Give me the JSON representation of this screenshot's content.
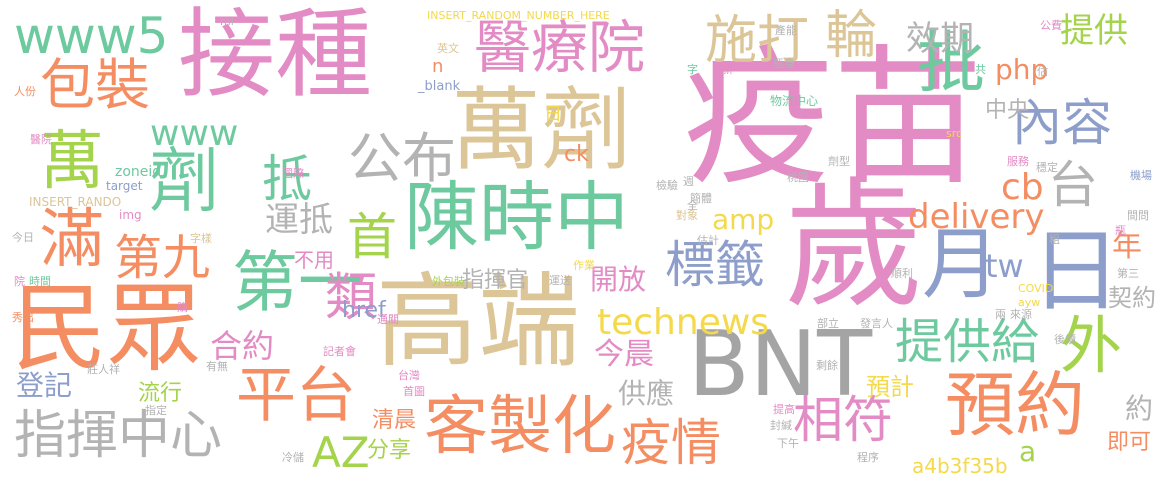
{
  "palette": {
    "pink": "#e38bc4",
    "tan": "#dcc597",
    "green": "#6dc99e",
    "orange": "#f58d62",
    "blue": "#8d9ecb",
    "lime": "#a4d34c",
    "yellow": "#f3d94b",
    "gray": "#b3b3b3",
    "darkgray": "#a4a4a4"
  },
  "words": [
    {
      "text": "疫苗",
      "color": "pink"
    },
    {
      "text": "接種",
      "color": "pink"
    },
    {
      "text": "歲",
      "color": "pink"
    },
    {
      "text": "高端",
      "color": "tan"
    },
    {
      "text": "萬劑",
      "color": "tan"
    },
    {
      "text": "民眾",
      "color": "orange"
    },
    {
      "text": "BNT",
      "color": "darkgray"
    },
    {
      "text": "陳時中",
      "color": "green"
    },
    {
      "text": "客製化",
      "color": "orange"
    },
    {
      "text": "日",
      "color": "blue"
    },
    {
      "text": "月",
      "color": "blue"
    },
    {
      "text": "醫療院",
      "color": "pink"
    },
    {
      "text": "包裝",
      "color": "orange"
    },
    {
      "text": "www5",
      "color": "green"
    },
    {
      "text": "平台",
      "color": "orange"
    },
    {
      "text": "指揮中心",
      "color": "gray"
    },
    {
      "text": "預約",
      "color": "orange"
    },
    {
      "text": "第一",
      "color": "green"
    },
    {
      "text": "批",
      "color": "green"
    },
    {
      "text": "劑",
      "color": "green"
    },
    {
      "text": "萬",
      "color": "lime"
    },
    {
      "text": "滿",
      "color": "orange"
    },
    {
      "text": "公布",
      "color": "gray"
    },
    {
      "text": "施打",
      "color": "tan"
    },
    {
      "text": "輪",
      "color": "tan"
    },
    {
      "text": "內容",
      "color": "blue"
    },
    {
      "text": "標籤",
      "color": "blue"
    },
    {
      "text": "疫情",
      "color": "orange"
    },
    {
      "text": "相符",
      "color": "pink"
    },
    {
      "text": "外",
      "color": "lime"
    },
    {
      "text": "提供給",
      "color": "green"
    },
    {
      "text": "technews",
      "color": "yellow"
    },
    {
      "text": "delivery",
      "color": "orange"
    },
    {
      "text": "台",
      "color": "gray"
    },
    {
      "text": "www",
      "color": "green"
    },
    {
      "text": "抵",
      "color": "green"
    },
    {
      "text": "首",
      "color": "lime"
    },
    {
      "text": "第九",
      "color": "orange"
    },
    {
      "text": "類",
      "color": "pink"
    },
    {
      "text": "AZ",
      "color": "lime"
    },
    {
      "text": "運抵",
      "color": "gray"
    },
    {
      "text": "效期",
      "color": "gray"
    },
    {
      "text": "提供",
      "color": "lime"
    },
    {
      "text": "php",
      "color": "orange"
    },
    {
      "text": "cb",
      "color": "orange"
    },
    {
      "text": "tw",
      "color": "blue"
    },
    {
      "text": "amp",
      "color": "yellow"
    },
    {
      "text": "今晨",
      "color": "pink"
    },
    {
      "text": "開放",
      "color": "pink"
    },
    {
      "text": "合約",
      "color": "pink"
    },
    {
      "text": "預計",
      "color": "yellow"
    },
    {
      "text": "年",
      "color": "orange"
    },
    {
      "text": "契約",
      "color": "gray"
    },
    {
      "text": "供應",
      "color": "gray"
    },
    {
      "text": "登記",
      "color": "blue"
    },
    {
      "text": "流行",
      "color": "lime"
    },
    {
      "text": "中央",
      "color": "gray"
    },
    {
      "text": "清晨",
      "color": "orange"
    },
    {
      "text": "分享",
      "color": "lime"
    },
    {
      "text": "href",
      "color": "blue"
    },
    {
      "text": "ck",
      "color": "orange"
    },
    {
      "text": "a4b3f35b",
      "color": "yellow"
    },
    {
      "text": "即可",
      "color": "orange"
    },
    {
      "text": "約",
      "color": "gray"
    },
    {
      "text": "指揮官",
      "color": "gray"
    },
    {
      "text": "不用",
      "color": "pink"
    },
    {
      "text": "a",
      "color": "lime"
    },
    {
      "text": "n",
      "color": "orange"
    },
    {
      "text": "日",
      "color": "yellow"
    },
    {
      "text": "INSERT_RANDOM_NUMBER_HERE",
      "color": "yellow"
    },
    {
      "text": "_blank",
      "color": "blue"
    },
    {
      "text": "zoneid",
      "color": "green"
    },
    {
      "text": "target",
      "color": "blue"
    },
    {
      "text": "INSERT_RANDO",
      "color": "tan"
    },
    {
      "text": "img",
      "color": "pink"
    },
    {
      "text": "物流中心",
      "color": "green"
    },
    {
      "text": "COVID",
      "color": "yellow"
    },
    {
      "text": "ayw",
      "color": "yellow"
    },
    {
      "text": "src",
      "color": "yellow"
    },
    {
      "text": "ml",
      "color": "gray"
    },
    {
      "text": "英文",
      "color": "tan"
    },
    {
      "text": "字",
      "color": "green"
    },
    {
      "text": "新",
      "color": "pink"
    },
    {
      "text": "共",
      "color": "green"
    },
    {
      "text": "產能",
      "color": "gray"
    },
    {
      "text": "瓶身",
      "color": "gray"
    },
    {
      "text": "公費",
      "color": "pink"
    },
    {
      "text": "估",
      "color": "gray"
    },
    {
      "text": "人份",
      "color": "orange"
    },
    {
      "text": "醫院",
      "color": "pink"
    },
    {
      "text": "服務",
      "color": "pink"
    },
    {
      "text": "劑型",
      "color": "gray"
    },
    {
      "text": "穩定",
      "color": "gray"
    },
    {
      "text": "機場",
      "color": "blue"
    },
    {
      "text": "桃園",
      "color": "gray"
    },
    {
      "text": "國際",
      "color": "pink"
    },
    {
      "text": "檢驗",
      "color": "gray"
    },
    {
      "text": "簡體",
      "color": "gray"
    },
    {
      "text": "週",
      "color": "gray"
    },
    {
      "text": "對象",
      "color": "tan"
    },
    {
      "text": "全",
      "color": "gray"
    },
    {
      "text": "粗",
      "color": "gray"
    },
    {
      "text": "間問",
      "color": "gray"
    },
    {
      "text": "今日",
      "color": "gray"
    },
    {
      "text": "字樣",
      "color": "tan"
    },
    {
      "text": "估計",
      "color": "gray"
    },
    {
      "text": "瓶",
      "color": "pink"
    },
    {
      "text": "時間",
      "color": "green"
    },
    {
      "text": "院",
      "color": "pink"
    },
    {
      "text": "外包裝",
      "color": "lime"
    },
    {
      "text": "作業",
      "color": "yellow"
    },
    {
      "text": "運送",
      "color": "gray"
    },
    {
      "text": "順利",
      "color": "gray"
    },
    {
      "text": "第三",
      "color": "gray"
    },
    {
      "text": "秀出",
      "color": "orange"
    },
    {
      "text": "購",
      "color": "pink"
    },
    {
      "text": "通關",
      "color": "pink"
    },
    {
      "text": "部立",
      "color": "gray"
    },
    {
      "text": "發言人",
      "color": "gray"
    },
    {
      "text": "來源",
      "color": "gray"
    },
    {
      "text": "兩",
      "color": "gray"
    },
    {
      "text": "後續",
      "color": "gray"
    },
    {
      "text": "莊人祥",
      "color": "gray"
    },
    {
      "text": "有無",
      "color": "gray"
    },
    {
      "text": "記者會",
      "color": "pink"
    },
    {
      "text": "台灣",
      "color": "pink"
    },
    {
      "text": "剩餘",
      "color": "gray"
    },
    {
      "text": "指定",
      "color": "gray"
    },
    {
      "text": "首圖",
      "color": "pink"
    },
    {
      "text": "提高",
      "color": "pink"
    },
    {
      "text": "封緘",
      "color": "gray"
    },
    {
      "text": "下午",
      "color": "gray"
    },
    {
      "text": "冷儲",
      "color": "gray"
    },
    {
      "text": "程序",
      "color": "gray"
    }
  ]
}
